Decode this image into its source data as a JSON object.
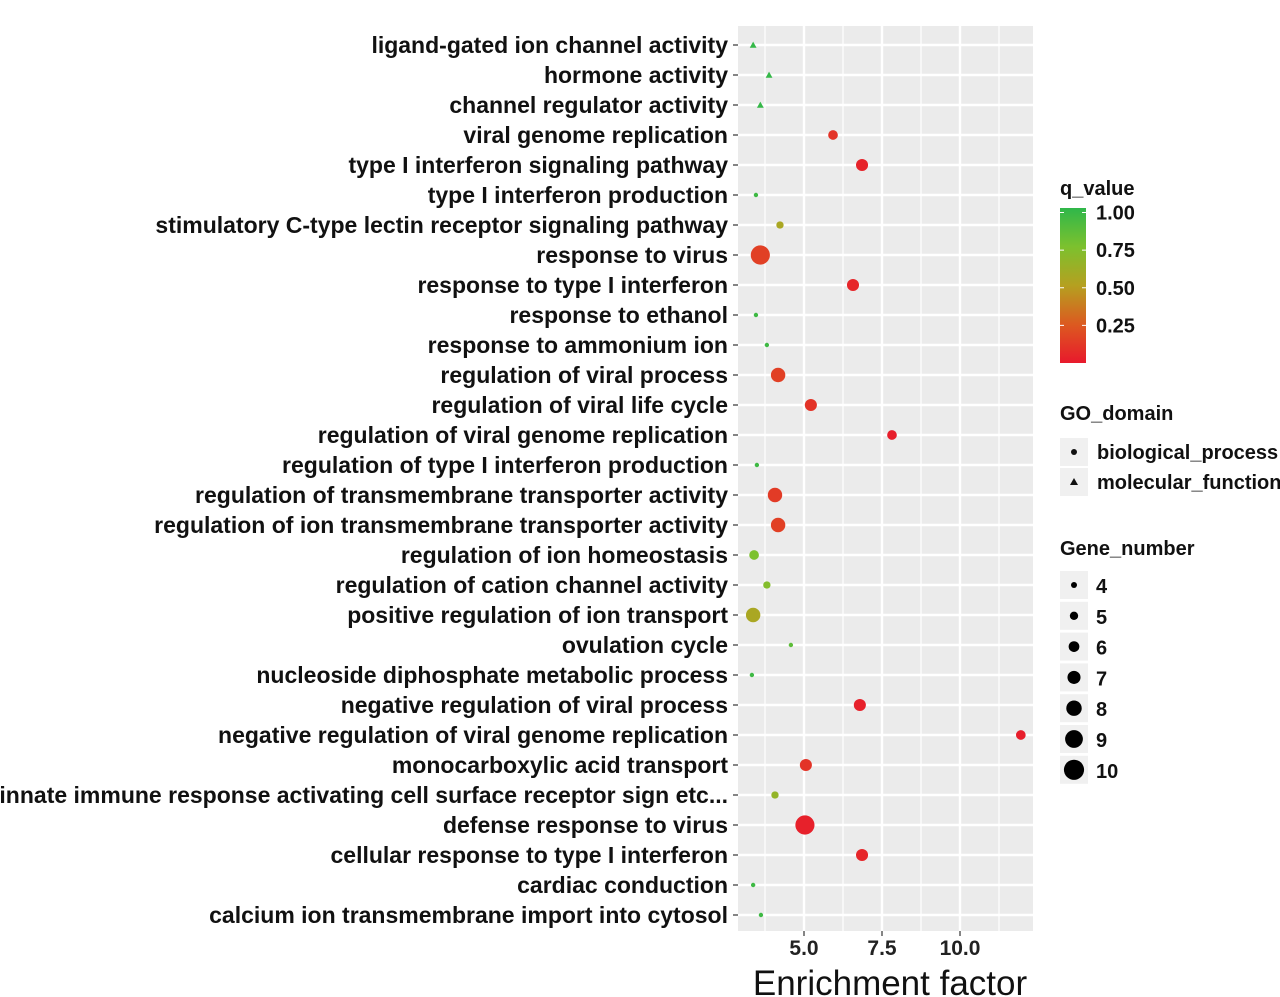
{
  "chart_data": {
    "type": "scatter",
    "title": "",
    "xlabel": "Enrichment factor",
    "ylabel": "",
    "xlim": [
      2.9,
      12.3
    ],
    "x_ticks": [
      5.0,
      7.5,
      10.0
    ],
    "x_tick_labels": [
      "5.0",
      "7.5",
      "10.0"
    ],
    "grid": true,
    "categories": [
      "ligand-gated ion channel activity",
      "hormone activity",
      "channel regulator activity",
      "viral genome replication",
      "type I interferon signaling pathway",
      "type I interferon production",
      "stimulatory C-type lectin receptor signaling pathway",
      "response to virus",
      "response to type I interferon",
      "response to ethanol",
      "response to ammonium ion",
      "regulation of viral process",
      "regulation of viral life cycle",
      "regulation of viral genome replication",
      "regulation of type I interferon production",
      "regulation of transmembrane transporter activity",
      "regulation of ion transmembrane transporter activity",
      "regulation of ion homeostasis",
      "regulation of cation channel activity",
      "positive regulation of ion transport",
      "ovulation cycle",
      "nucleoside diphosphate metabolic process",
      "negative regulation of viral process",
      "negative regulation of viral genome replication",
      "monocarboxylic acid transport",
      "innate immune response activating cell surface receptor sign etc...",
      "defense response to virus",
      "cellular response to type I interferon",
      "cardiac conduction",
      "calcium ion transmembrane import into cytosol"
    ],
    "points": [
      {
        "term": "ligand-gated ion channel activity",
        "enrichment": 3.37,
        "q_value": 0.98,
        "gene_number": 3,
        "go_domain": "molecular_function"
      },
      {
        "term": "hormone activity",
        "enrichment": 3.88,
        "q_value": 0.98,
        "gene_number": 3,
        "go_domain": "molecular_function"
      },
      {
        "term": "channel regulator activity",
        "enrichment": 3.6,
        "q_value": 0.98,
        "gene_number": 3,
        "go_domain": "molecular_function"
      },
      {
        "term": "viral genome replication",
        "enrichment": 5.93,
        "q_value": 0.1,
        "gene_number": 6,
        "go_domain": "biological_process"
      },
      {
        "term": "type I interferon signaling pathway",
        "enrichment": 6.86,
        "q_value": 0.04,
        "gene_number": 7,
        "go_domain": "biological_process"
      },
      {
        "term": "type I interferon production",
        "enrichment": 3.46,
        "q_value": 0.95,
        "gene_number": 3,
        "go_domain": "biological_process"
      },
      {
        "term": "stimulatory C-type lectin receptor signaling pathway",
        "enrichment": 4.23,
        "q_value": 0.55,
        "gene_number": 5,
        "go_domain": "biological_process"
      },
      {
        "term": "response to virus",
        "enrichment": 3.6,
        "q_value": 0.15,
        "gene_number": 10,
        "go_domain": "biological_process"
      },
      {
        "term": "response to type I interferon",
        "enrichment": 6.57,
        "q_value": 0.05,
        "gene_number": 7,
        "go_domain": "biological_process"
      },
      {
        "term": "response to ethanol",
        "enrichment": 3.46,
        "q_value": 0.95,
        "gene_number": 3,
        "go_domain": "biological_process"
      },
      {
        "term": "response to ammonium ion",
        "enrichment": 3.81,
        "q_value": 0.95,
        "gene_number": 3,
        "go_domain": "biological_process"
      },
      {
        "term": "regulation of viral process",
        "enrichment": 4.17,
        "q_value": 0.15,
        "gene_number": 8,
        "go_domain": "biological_process"
      },
      {
        "term": "regulation of viral life cycle",
        "enrichment": 5.22,
        "q_value": 0.1,
        "gene_number": 7,
        "go_domain": "biological_process"
      },
      {
        "term": "regulation of viral genome replication",
        "enrichment": 7.82,
        "q_value": 0.02,
        "gene_number": 6,
        "go_domain": "biological_process"
      },
      {
        "term": "regulation of type I interferon production",
        "enrichment": 3.49,
        "q_value": 0.95,
        "gene_number": 3,
        "go_domain": "biological_process"
      },
      {
        "term": "regulation of transmembrane transporter activity",
        "enrichment": 4.07,
        "q_value": 0.13,
        "gene_number": 8,
        "go_domain": "biological_process"
      },
      {
        "term": "regulation of ion transmembrane transporter activity",
        "enrichment": 4.17,
        "q_value": 0.15,
        "gene_number": 8,
        "go_domain": "biological_process"
      },
      {
        "term": "regulation of ion homeostasis",
        "enrichment": 3.4,
        "q_value": 0.75,
        "gene_number": 6,
        "go_domain": "biological_process"
      },
      {
        "term": "regulation of cation channel activity",
        "enrichment": 3.81,
        "q_value": 0.72,
        "gene_number": 5,
        "go_domain": "biological_process"
      },
      {
        "term": "positive regulation of ion transport",
        "enrichment": 3.37,
        "q_value": 0.55,
        "gene_number": 8,
        "go_domain": "biological_process"
      },
      {
        "term": "ovulation cycle",
        "enrichment": 4.58,
        "q_value": 0.85,
        "gene_number": 3,
        "go_domain": "biological_process"
      },
      {
        "term": "nucleoside diphosphate metabolic process",
        "enrichment": 3.33,
        "q_value": 0.95,
        "gene_number": 3,
        "go_domain": "biological_process"
      },
      {
        "term": "negative regulation of viral process",
        "enrichment": 6.79,
        "q_value": 0.03,
        "gene_number": 7,
        "go_domain": "biological_process"
      },
      {
        "term": "negative regulation of viral genome replication",
        "enrichment": 11.95,
        "q_value": 0.02,
        "gene_number": 6,
        "go_domain": "biological_process"
      },
      {
        "term": "monocarboxylic acid transport",
        "enrichment": 5.06,
        "q_value": 0.1,
        "gene_number": 7,
        "go_domain": "biological_process"
      },
      {
        "term": "innate immune response activating cell surface receptor sign etc...",
        "enrichment": 4.07,
        "q_value": 0.65,
        "gene_number": 5,
        "go_domain": "biological_process"
      },
      {
        "term": "defense response to virus",
        "enrichment": 5.03,
        "q_value": 0.03,
        "gene_number": 10,
        "go_domain": "biological_process"
      },
      {
        "term": "cellular response to type I interferon",
        "enrichment": 6.86,
        "q_value": 0.05,
        "gene_number": 7,
        "go_domain": "biological_process"
      },
      {
        "term": "cardiac conduction",
        "enrichment": 3.37,
        "q_value": 0.95,
        "gene_number": 3,
        "go_domain": "biological_process"
      },
      {
        "term": "calcium ion transmembrane import into cytosol",
        "enrichment": 3.62,
        "q_value": 0.95,
        "gene_number": 3,
        "go_domain": "biological_process"
      }
    ],
    "legends": {
      "color": {
        "title": "q_value",
        "labels": [
          "1.00",
          "0.75",
          "0.50",
          "0.25"
        ],
        "values": [
          1.0,
          0.75,
          0.5,
          0.25
        ],
        "range": [
          0,
          1
        ],
        "low_color": "#e8192c",
        "mid_color": "#b5a020",
        "high_color": "#2fb74a"
      },
      "shape": {
        "title": "GO_domain",
        "items": [
          {
            "label": "biological_process",
            "shape": "circle"
          },
          {
            "label": "molecular_function",
            "shape": "triangle"
          }
        ]
      },
      "size": {
        "title": "Gene_number",
        "items": [
          {
            "label": "4",
            "value": 4
          },
          {
            "label": "5",
            "value": 5
          },
          {
            "label": "6",
            "value": 6
          },
          {
            "label": "7",
            "value": 7
          },
          {
            "label": "8",
            "value": 8
          },
          {
            "label": "9",
            "value": 9
          },
          {
            "label": "10",
            "value": 10
          }
        ]
      },
      "placement": "right"
    },
    "colors": {
      "panel_background": "#ebebeb",
      "grid": "#ffffff"
    }
  }
}
